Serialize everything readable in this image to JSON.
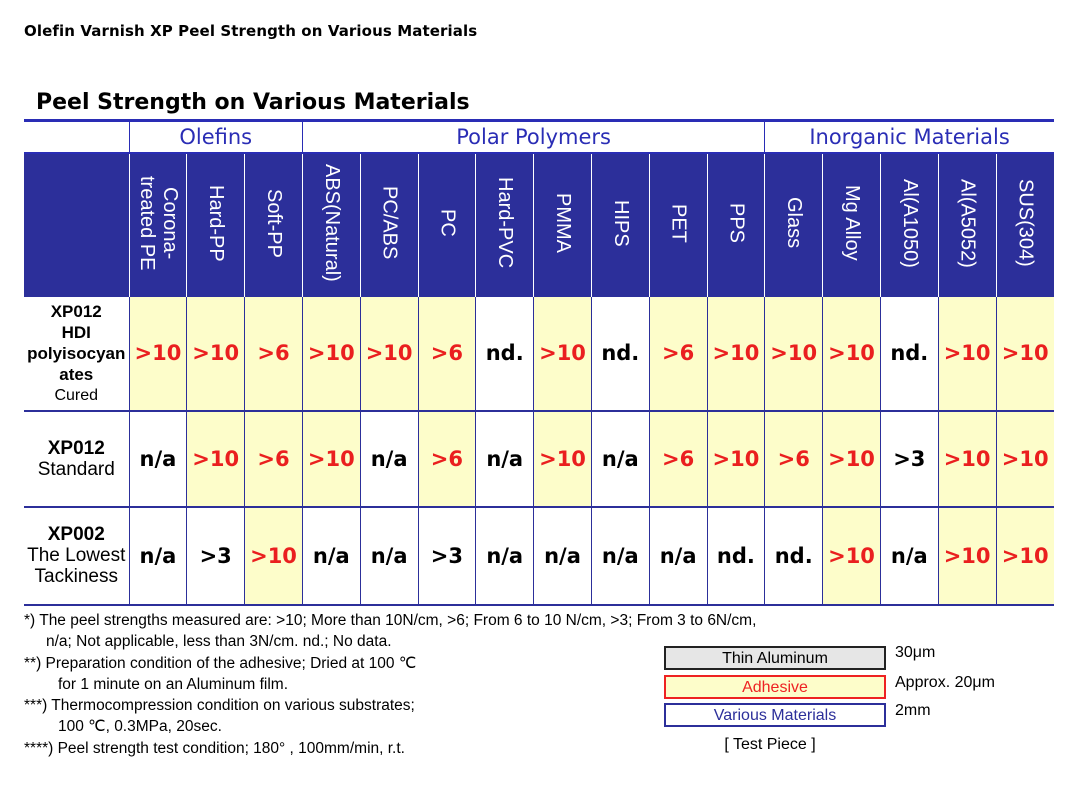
{
  "page_title": "Olefin Varnish XP Peel Strength on Various Materials",
  "section_title": "Peel Strength on Various Materials",
  "groups": [
    {
      "label": "Olefins",
      "span": 3
    },
    {
      "label": "Polar Polymers",
      "span": 8
    },
    {
      "label": "Inorganic Materials",
      "span": 5
    }
  ],
  "materials": [
    "Corona-\ntreated PE",
    "Hard-PP",
    "Soft-PP",
    "ABS(Natural)",
    "PC/ABS",
    "PC",
    "Hard-PVC",
    "PMMA",
    "HIPS",
    "PET",
    "PPS",
    "Glass",
    "Mg Alloy",
    "Al(A1050)",
    "Al(A5052)",
    "SUS(304)"
  ],
  "rows": [
    {
      "head": [
        "XP012",
        "HDI",
        "polyisocyan",
        "ates",
        "Cured"
      ],
      "values": [
        ">10",
        ">10",
        ">6",
        ">10",
        ">10",
        ">6",
        "nd.",
        ">10",
        "nd.",
        ">6",
        ">10",
        ">10",
        ">10",
        "nd.",
        ">10",
        ">10"
      ]
    },
    {
      "head": [
        "XP012",
        "Standard"
      ],
      "values": [
        "n/a",
        ">10",
        ">6",
        ">10",
        "n/a",
        ">6",
        "n/a",
        ">10",
        "n/a",
        ">6",
        ">10",
        ">6",
        ">10",
        ">3",
        ">10",
        ">10"
      ]
    },
    {
      "head": [
        "XP002",
        "The Lowest",
        "Tackiness"
      ],
      "values": [
        "n/a",
        ">3",
        ">10",
        "n/a",
        "n/a",
        ">3",
        "n/a",
        "n/a",
        "n/a",
        "n/a",
        "nd.",
        "nd.",
        ">10",
        "n/a",
        ">10",
        ">10"
      ]
    }
  ],
  "notes": [
    "*) The peel strengths measured are: >10; More than 10N/cm, >6; From 6 to 10 N/cm, >3; From 3 to 6N/cm,",
    "n/a; Not applicable, less than 3N/cm. nd.; No data.",
    "**) Preparation condition of the adhesive; Dried at 100 ℃",
    "for 1 minute on an Aluminum film.",
    "***) Thermocompression condition on various substrates;",
    "100 ℃, 0.3MPa, 20sec.",
    "****) Peel strength test condition; 180° , 100mm/min, r.t."
  ],
  "test_piece": {
    "layers": [
      "Thin Aluminum",
      "Adhesive",
      "Various Materials"
    ],
    "thickness": [
      "30μm",
      "Approx. 20μm",
      "2mm"
    ],
    "caption": "[ Test Piece ]"
  },
  "colors": {
    "header_blue": "#2c2f9a",
    "group_text_blue": "#2a2db5",
    "highlight_yellow": "#fdfdca",
    "value_red": "#ea1f1f"
  }
}
